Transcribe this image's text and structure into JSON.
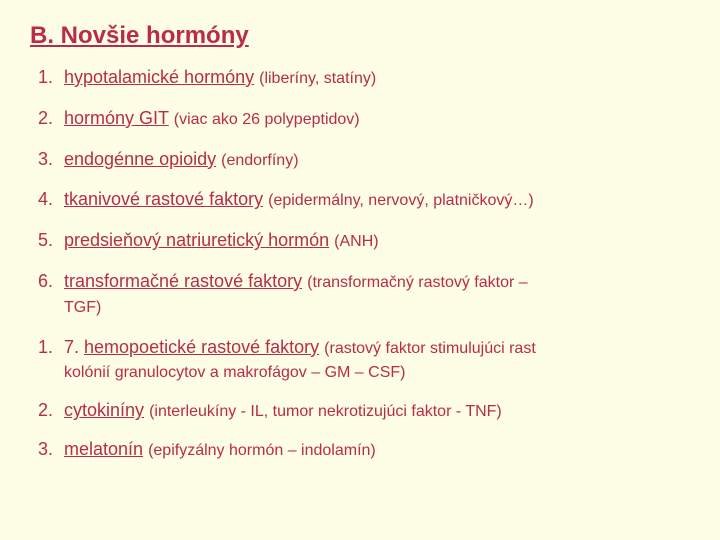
{
  "colors": {
    "background": "#fefde6",
    "text": "#b82c4a"
  },
  "typography": {
    "title_fontsize": 24,
    "item_fontsize": 18,
    "paren_fontsize": 16,
    "font_family": "Arial"
  },
  "title": "B. Novšie hormóny",
  "list1": [
    {
      "term": "hypotalamické hormóny",
      "paren": "(liberíny, statíny)"
    },
    {
      "term": "hormóny GIT",
      "paren": "(viac ako 26 polypeptidov)"
    },
    {
      "term": "endogénne opioidy",
      "paren": "(endorfíny)"
    },
    {
      "term": "tkanivové rastové faktory",
      "paren": "(epidermálny, nervový, platničkový…)"
    },
    {
      "term": "predsieňový natriuretický hormón",
      "paren": "(ANH)"
    },
    {
      "term": "transformačné rastové faktory",
      "paren": "(transformačný rastový faktor –",
      "cont": "TGF)"
    }
  ],
  "list2": [
    {
      "prefix": "7.  ",
      "term": "hemopoetické rastové faktory",
      "paren": "(rastový faktor stimulujúci rast",
      "cont": "kolónií  granulocytov a makrofágov – GM – CSF)"
    },
    {
      "prefix": "",
      "term": "cytokiníny",
      "paren": "(interleukíny - IL, tumor nekrotizujúci faktor - TNF)"
    },
    {
      "prefix": "",
      "term": "melatonín",
      "paren": "(epifyzálny hormón – indolamín)"
    }
  ]
}
